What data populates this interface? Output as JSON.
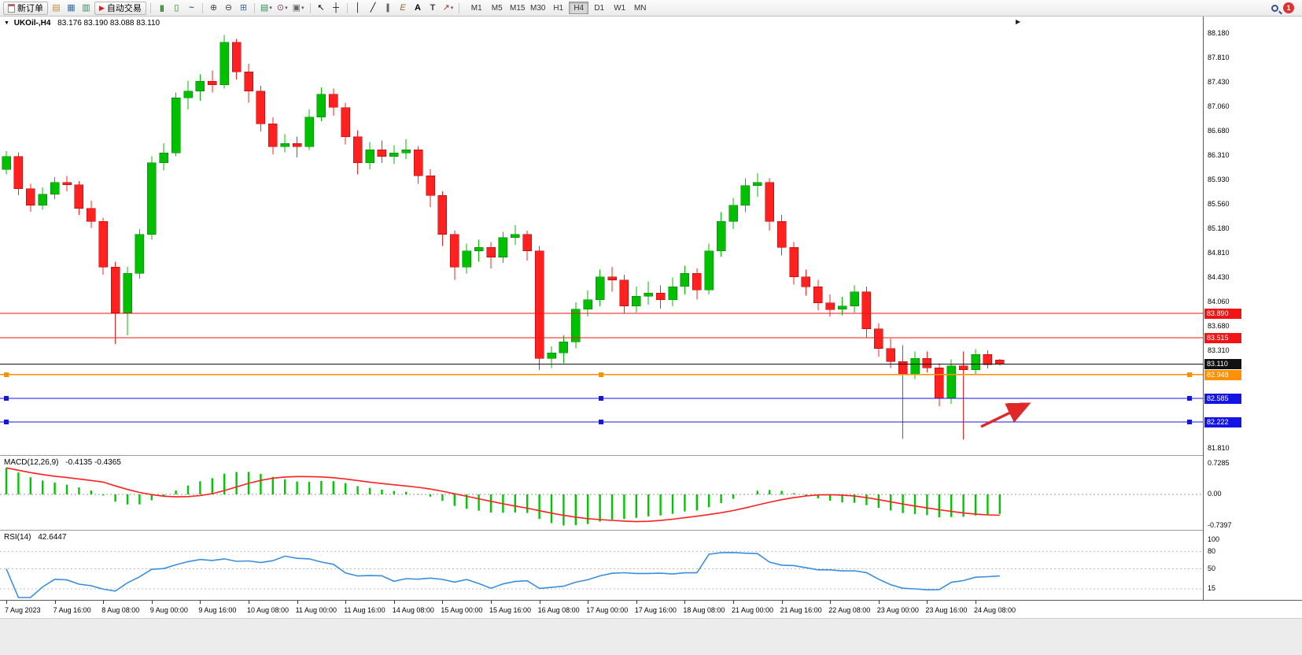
{
  "toolbar": {
    "new_order_label": "新订单",
    "auto_trading_label": "自动交易",
    "timeframes": [
      "M1",
      "M5",
      "M15",
      "M30",
      "H1",
      "H4",
      "D1",
      "W1",
      "MN"
    ],
    "active_timeframe": "H4",
    "notification_count": "1",
    "glyphs": {
      "chart_window": "▤",
      "profiles": "▦",
      "market_watch": "▥",
      "auto_play": "▶",
      "bars": "|||",
      "candles": "▯",
      "line_chart": "~",
      "zoom_in": "⊕",
      "zoom_out": "⊖",
      "tile_windows": "⊞",
      "new_chart": "▤",
      "clock": "⊙",
      "snapshot": "▣",
      "cursor": "↖",
      "crosshair": "┼",
      "vline": "│",
      "trendline": "╱",
      "channel": "∥",
      "fibonacci": "E",
      "text_tool": "A",
      "label_tool": "T",
      "arrows_tool": "↗",
      "caret": "▾",
      "oct": "▼",
      "shift": "▶"
    }
  },
  "chart": {
    "symbol_label": "UKOil-,H4",
    "ohlc_label": "83.176 83.190 83.088 83.110",
    "axis_labels": [
      {
        "t": "88.180",
        "p": 88.18
      },
      {
        "t": "87.810",
        "p": 87.81
      },
      {
        "t": "87.430",
        "p": 87.43
      },
      {
        "t": "87.060",
        "p": 87.06
      },
      {
        "t": "86.680",
        "p": 86.68
      },
      {
        "t": "86.310",
        "p": 86.31
      },
      {
        "t": "85.930",
        "p": 85.93
      },
      {
        "t": "85.560",
        "p": 85.56
      },
      {
        "t": "85.180",
        "p": 85.18
      },
      {
        "t": "84.810",
        "p": 84.81
      },
      {
        "t": "84.430",
        "p": 84.43
      },
      {
        "t": "84.060",
        "p": 84.06
      },
      {
        "t": "83.680",
        "p": 83.68
      },
      {
        "t": "83.310",
        "p": 83.31
      },
      {
        "t": "81.810",
        "p": 81.81
      }
    ],
    "hlines": [
      {
        "label": "83.890",
        "price": 83.89,
        "color": "#f21414",
        "handles": false
      },
      {
        "label": "83.515",
        "price": 83.515,
        "color": "#f21414",
        "handles": false
      },
      {
        "label": "83.110",
        "price": 83.11,
        "color": "#111111",
        "handles": false
      },
      {
        "label": "82.948",
        "price": 82.948,
        "color": "#ff9100",
        "handles": true
      },
      {
        "label": "82.585",
        "price": 82.585,
        "color": "#1414e6",
        "handles": true
      },
      {
        "label": "82.222",
        "price": 82.222,
        "color": "#1414e6",
        "handles": true
      }
    ],
    "arrow_color": "#e02828",
    "time_labels": [
      "7 Aug 2023",
      "7 Aug 16:00",
      "8 Aug 08:00",
      "9 Aug 00:00",
      "9 Aug 16:00",
      "10 Aug 08:00",
      "11 Aug 00:00",
      "11 Aug 16:00",
      "14 Aug 08:00",
      "15 Aug 00:00",
      "15 Aug 16:00",
      "16 Aug 08:00",
      "17 Aug 00:00",
      "17 Aug 16:00",
      "18 Aug 08:00",
      "21 Aug 00:00",
      "21 Aug 16:00",
      "22 Aug 08:00",
      "23 Aug 00:00",
      "23 Aug 16:00",
      "24 Aug 08:00"
    ]
  },
  "chart_data": {
    "type": "candlestick",
    "symbol": "UKOil-",
    "timeframe": "H4",
    "ylim": [
      81.81,
      88.18
    ],
    "up_color": "#00c000",
    "up_edge": "#007700",
    "down_color": "#ff2020",
    "down_edge": "#a00000",
    "candles": [
      [
        86.1,
        86.38,
        86.02,
        86.3
      ],
      [
        86.3,
        86.36,
        85.7,
        85.8
      ],
      [
        85.8,
        85.88,
        85.45,
        85.55
      ],
      [
        85.55,
        85.82,
        85.48,
        85.72
      ],
      [
        85.72,
        85.98,
        85.64,
        85.9
      ],
      [
        85.9,
        86.0,
        85.76,
        85.86
      ],
      [
        85.86,
        85.92,
        85.4,
        85.5
      ],
      [
        85.5,
        85.62,
        85.2,
        85.3
      ],
      [
        85.3,
        85.36,
        84.48,
        84.6
      ],
      [
        84.6,
        84.68,
        83.42,
        83.9
      ],
      [
        83.9,
        84.6,
        83.55,
        84.5
      ],
      [
        84.5,
        85.18,
        84.42,
        85.1
      ],
      [
        85.1,
        86.3,
        85.02,
        86.2
      ],
      [
        86.2,
        86.5,
        86.08,
        86.35
      ],
      [
        86.35,
        87.28,
        86.3,
        87.2
      ],
      [
        87.2,
        87.46,
        87.02,
        87.3
      ],
      [
        87.3,
        87.56,
        87.15,
        87.45
      ],
      [
        87.45,
        87.62,
        87.28,
        87.4
      ],
      [
        87.4,
        88.16,
        87.34,
        88.05
      ],
      [
        88.05,
        88.1,
        87.48,
        87.6
      ],
      [
        87.6,
        87.72,
        87.12,
        87.3
      ],
      [
        87.3,
        87.38,
        86.68,
        86.8
      ],
      [
        86.8,
        86.9,
        86.33,
        86.45
      ],
      [
        86.45,
        86.64,
        86.36,
        86.5
      ],
      [
        86.5,
        86.6,
        86.28,
        86.45
      ],
      [
        86.45,
        87.02,
        86.4,
        86.9
      ],
      [
        86.9,
        87.36,
        86.84,
        87.25
      ],
      [
        87.25,
        87.34,
        86.92,
        87.05
      ],
      [
        87.05,
        87.12,
        86.48,
        86.6
      ],
      [
        86.6,
        86.7,
        86.02,
        86.2
      ],
      [
        86.2,
        86.52,
        86.1,
        86.4
      ],
      [
        86.4,
        86.54,
        86.2,
        86.3
      ],
      [
        86.3,
        86.47,
        86.18,
        86.35
      ],
      [
        86.35,
        86.56,
        86.26,
        86.4
      ],
      [
        86.4,
        86.46,
        85.88,
        86.0
      ],
      [
        86.0,
        86.1,
        85.52,
        85.7
      ],
      [
        85.7,
        85.76,
        84.92,
        85.1
      ],
      [
        85.1,
        85.16,
        84.4,
        84.6
      ],
      [
        84.6,
        84.96,
        84.5,
        84.85
      ],
      [
        84.85,
        85.02,
        84.68,
        84.9
      ],
      [
        84.9,
        84.98,
        84.58,
        84.75
      ],
      [
        84.75,
        85.14,
        84.66,
        85.05
      ],
      [
        85.05,
        85.24,
        84.94,
        85.1
      ],
      [
        85.1,
        85.16,
        84.7,
        84.85
      ],
      [
        84.85,
        84.92,
        83.02,
        83.2
      ],
      [
        83.2,
        83.38,
        83.05,
        83.28
      ],
      [
        83.28,
        83.55,
        83.12,
        83.45
      ],
      [
        83.45,
        84.06,
        83.35,
        83.95
      ],
      [
        83.95,
        84.24,
        83.84,
        84.1
      ],
      [
        84.1,
        84.56,
        84.0,
        84.45
      ],
      [
        84.45,
        84.6,
        84.22,
        84.4
      ],
      [
        84.4,
        84.48,
        83.88,
        84.0
      ],
      [
        84.0,
        84.3,
        83.9,
        84.15
      ],
      [
        84.15,
        84.38,
        84.02,
        84.2
      ],
      [
        84.2,
        84.32,
        83.96,
        84.1
      ],
      [
        84.1,
        84.44,
        84.0,
        84.3
      ],
      [
        84.3,
        84.62,
        84.18,
        84.5
      ],
      [
        84.5,
        84.58,
        84.1,
        84.25
      ],
      [
        84.25,
        84.96,
        84.18,
        84.85
      ],
      [
        84.85,
        85.44,
        84.76,
        85.3
      ],
      [
        85.3,
        85.66,
        85.18,
        85.55
      ],
      [
        85.55,
        85.96,
        85.44,
        85.85
      ],
      [
        85.85,
        86.04,
        85.68,
        85.9
      ],
      [
        85.9,
        85.96,
        85.16,
        85.3
      ],
      [
        85.3,
        85.4,
        84.78,
        84.9
      ],
      [
        84.9,
        84.98,
        84.33,
        84.45
      ],
      [
        84.45,
        84.56,
        84.16,
        84.3
      ],
      [
        84.3,
        84.4,
        83.94,
        84.05
      ],
      [
        84.05,
        84.18,
        83.84,
        83.95
      ],
      [
        83.95,
        84.14,
        83.86,
        84.0
      ],
      [
        84.0,
        84.32,
        83.9,
        84.22
      ],
      [
        84.22,
        84.3,
        83.52,
        83.65
      ],
      [
        83.65,
        83.74,
        83.22,
        83.35
      ],
      [
        83.35,
        83.5,
        83.05,
        83.15
      ],
      [
        83.15,
        83.4,
        81.96,
        82.95
      ],
      [
        82.95,
        83.3,
        82.88,
        83.2
      ],
      [
        83.2,
        83.3,
        82.98,
        83.05
      ],
      [
        83.05,
        83.12,
        82.46,
        82.58
      ],
      [
        82.58,
        83.18,
        82.5,
        83.08
      ],
      [
        83.08,
        83.3,
        81.95,
        83.02
      ],
      [
        83.02,
        83.34,
        82.96,
        83.26
      ],
      [
        83.26,
        83.32,
        83.04,
        83.1
      ],
      [
        83.176,
        83.19,
        83.088,
        83.11
      ]
    ]
  },
  "macd": {
    "label": "MACD(12,26,9)",
    "values": "-0.4135 -0.4365",
    "scale_top": "0.7285",
    "scale_zero": "0.00",
    "scale_bottom": "-0.7397",
    "histogram_color": "#00c800",
    "signal_color": "#ff2020"
  },
  "rsi": {
    "label": "RSI(14)",
    "value": "42.6447",
    "scale": [
      {
        "t": "100",
        "v": 100
      },
      {
        "t": "80",
        "v": 80
      },
      {
        "t": "50",
        "v": 50
      },
      {
        "t": "15",
        "v": 15
      }
    ],
    "levels": [
      80,
      50,
      15
    ],
    "line_color": "#3a8ede"
  }
}
